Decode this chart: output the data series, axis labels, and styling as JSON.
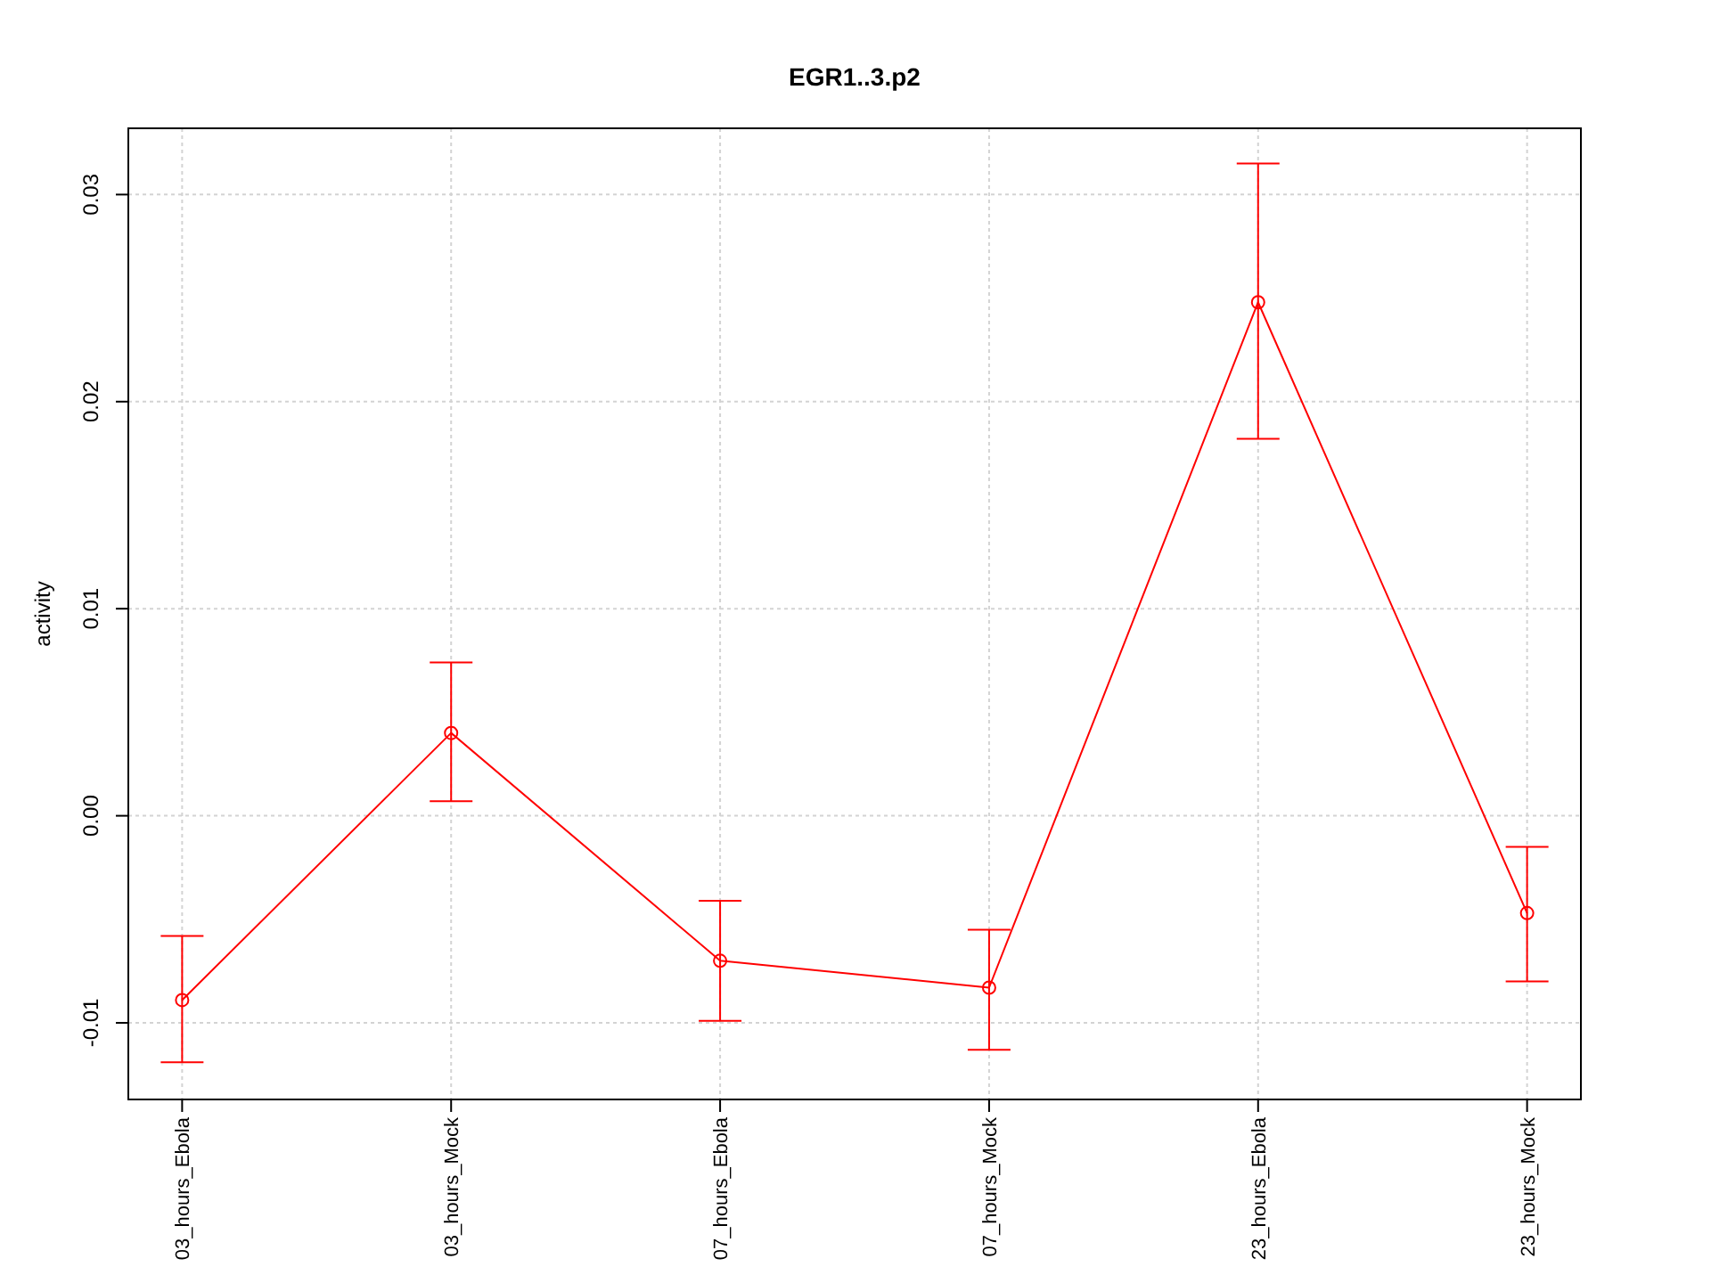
{
  "chart_data": {
    "type": "line",
    "title": "EGR1..3.p2",
    "ylabel": "activity",
    "categories": [
      "03_hours_Ebola",
      "03_hours_Mock",
      "07_hours_Ebola",
      "07_hours_Mock",
      "23_hours_Ebola",
      "23_hours_Mock"
    ],
    "series": [
      {
        "color": "#ff0000",
        "values": [
          -0.0089,
          0.004,
          -0.007,
          -0.0083,
          0.0248,
          -0.0047
        ],
        "errors": [
          [
            -0.0119,
            -0.0058
          ],
          [
            0.0007,
            0.0074
          ],
          [
            -0.0099,
            -0.0041
          ],
          [
            -0.0113,
            -0.0055
          ],
          [
            0.0182,
            0.0315
          ],
          [
            -0.008,
            -0.0015
          ]
        ]
      }
    ],
    "ylim": [
      -0.0137,
      0.0332
    ],
    "yticks": [
      {
        "value": -0.01,
        "label": "-0.01"
      },
      {
        "value": 0,
        "label": "0.00"
      },
      {
        "value": 0.01,
        "label": "0.01"
      },
      {
        "value": 0.02,
        "label": "0.02"
      },
      {
        "value": 0.03,
        "label": "0.03"
      }
    ],
    "grid": true,
    "marker": "circle",
    "line_style": "solid"
  }
}
